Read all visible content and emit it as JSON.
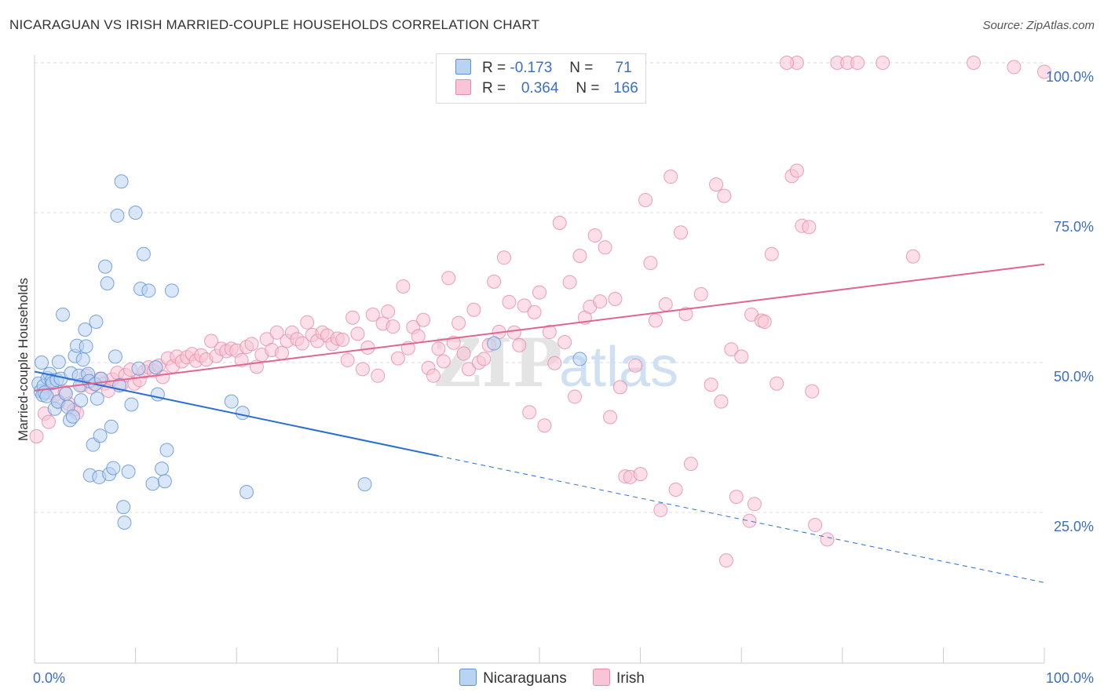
{
  "header": {
    "title": "NICARAGUAN VS IRISH MARRIED-COUPLE HOUSEHOLDS CORRELATION CHART",
    "source": "Source: ZipAtlas.com"
  },
  "legend": {
    "rows": [
      {
        "r_label": "R =",
        "r_value": "-0.173",
        "n_label": "N =",
        "n_value": "71"
      },
      {
        "r_label": "R =",
        "r_value": "0.364",
        "n_label": "N =",
        "n_value": "166"
      }
    ]
  },
  "watermark": {
    "zip": "ZIP",
    "atlas": "atlas"
  },
  "colors": {
    "nicaraguan_fill": "#b9d3f2",
    "nicaraguan_stroke": "#5b8fd6",
    "nicaraguan_line": "#2a6fd0",
    "irish_fill": "#f9c4d5",
    "irish_stroke": "#e68aa8",
    "irish_line": "#e2658e",
    "grid": "#dddddd",
    "tick_label": "#3a6fc4"
  },
  "chart_data": {
    "type": "scatter",
    "title": "NICARAGUAN VS IRISH MARRIED-COUPLE HOUSEHOLDS CORRELATION CHART",
    "xlabel": "",
    "ylabel": "Married-couple Households",
    "xlim": [
      0,
      100
    ],
    "ylim": [
      0,
      104
    ],
    "x_tick_labels": [
      "0.0%",
      "100.0%"
    ],
    "y_ticks": [
      25,
      50,
      75,
      100
    ],
    "y_tick_labels": [
      "25.0%",
      "50.0%",
      "75.0%",
      "100.0%"
    ],
    "grid": true,
    "legend_position": "bottom",
    "series": [
      {
        "name": "Nicaraguans",
        "r": -0.173,
        "n": 71,
        "trend": {
          "x0": 0,
          "y0": 48.5,
          "x1": 100,
          "y1": 13.3,
          "solid_until": 40
        },
        "points": [
          [
            0.4,
            46.5
          ],
          [
            0.6,
            45.2
          ],
          [
            0.8,
            44.6
          ],
          [
            0.7,
            50.0
          ],
          [
            0.9,
            46.1
          ],
          [
            1.0,
            45.0
          ],
          [
            1.2,
            44.4
          ],
          [
            1.3,
            47.4
          ],
          [
            1.5,
            48.1
          ],
          [
            1.7,
            47.0
          ],
          [
            1.8,
            46.6
          ],
          [
            2.0,
            42.3
          ],
          [
            2.2,
            47.1
          ],
          [
            2.3,
            43.5
          ],
          [
            2.4,
            50.1
          ],
          [
            2.6,
            47.3
          ],
          [
            2.8,
            58.0
          ],
          [
            3.1,
            44.8
          ],
          [
            3.3,
            42.6
          ],
          [
            3.5,
            40.4
          ],
          [
            3.6,
            48.2
          ],
          [
            3.8,
            41.0
          ],
          [
            4.0,
            51.1
          ],
          [
            4.2,
            52.8
          ],
          [
            4.4,
            47.8
          ],
          [
            4.5,
            46.2
          ],
          [
            4.6,
            43.7
          ],
          [
            4.8,
            50.5
          ],
          [
            5.0,
            55.5
          ],
          [
            5.1,
            52.7
          ],
          [
            5.3,
            48.1
          ],
          [
            5.4,
            46.9
          ],
          [
            5.5,
            31.2
          ],
          [
            5.8,
            36.3
          ],
          [
            6.0,
            46.4
          ],
          [
            6.1,
            56.8
          ],
          [
            6.2,
            44.0
          ],
          [
            6.4,
            30.9
          ],
          [
            6.5,
            37.8
          ],
          [
            6.6,
            47.3
          ],
          [
            7.0,
            66.0
          ],
          [
            7.2,
            63.2
          ],
          [
            7.4,
            31.4
          ],
          [
            7.6,
            39.3
          ],
          [
            7.8,
            32.4
          ],
          [
            8.0,
            51.0
          ],
          [
            8.2,
            74.5
          ],
          [
            8.4,
            46.2
          ],
          [
            8.6,
            80.2
          ],
          [
            8.8,
            25.9
          ],
          [
            8.9,
            23.3
          ],
          [
            9.3,
            31.8
          ],
          [
            9.6,
            43.0
          ],
          [
            10.0,
            75.0
          ],
          [
            10.5,
            62.3
          ],
          [
            10.8,
            68.1
          ],
          [
            11.3,
            62.0
          ],
          [
            11.7,
            29.8
          ],
          [
            12.0,
            49.2
          ],
          [
            12.2,
            44.7
          ],
          [
            12.6,
            32.3
          ],
          [
            12.9,
            30.2
          ],
          [
            13.1,
            35.4
          ],
          [
            13.6,
            62.0
          ],
          [
            19.5,
            43.5
          ],
          [
            20.6,
            41.6
          ],
          [
            21.0,
            28.4
          ],
          [
            32.7,
            29.7
          ],
          [
            54.0,
            50.6
          ],
          [
            45.5,
            53.2
          ],
          [
            10.3,
            49.0
          ]
        ]
      },
      {
        "name": "Irish",
        "r": 0.364,
        "n": 166,
        "trend": {
          "x0": 0,
          "y0": 45.3,
          "x1": 100,
          "y1": 66.4
        },
        "points": [
          [
            0.2,
            37.7
          ],
          [
            1.0,
            41.5
          ],
          [
            1.4,
            40.1
          ],
          [
            2.0,
            44.6
          ],
          [
            2.4,
            43.4
          ],
          [
            3.0,
            45.1
          ],
          [
            3.4,
            43.1
          ],
          [
            3.9,
            42.1
          ],
          [
            4.2,
            41.6
          ],
          [
            4.7,
            46.2
          ],
          [
            5.1,
            47.8
          ],
          [
            5.6,
            45.9
          ],
          [
            6.0,
            46.4
          ],
          [
            6.5,
            47.3
          ],
          [
            6.9,
            46.5
          ],
          [
            7.3,
            45.3
          ],
          [
            7.7,
            47.2
          ],
          [
            8.2,
            48.3
          ],
          [
            8.6,
            46.3
          ],
          [
            9.0,
            47.9
          ],
          [
            9.5,
            48.8
          ],
          [
            9.9,
            46.5
          ],
          [
            10.4,
            47.1
          ],
          [
            10.9,
            48.5
          ],
          [
            11.3,
            49.2
          ],
          [
            11.8,
            48.6
          ],
          [
            12.3,
            49.5
          ],
          [
            12.7,
            47.6
          ],
          [
            13.2,
            50.7
          ],
          [
            13.7,
            49.4
          ],
          [
            14.1,
            51.0
          ],
          [
            14.6,
            50.2
          ],
          [
            15.1,
            50.9
          ],
          [
            15.6,
            51.4
          ],
          [
            16.0,
            50.3
          ],
          [
            16.5,
            51.2
          ],
          [
            17.0,
            50.5
          ],
          [
            17.5,
            53.6
          ],
          [
            18.0,
            51.1
          ],
          [
            18.5,
            52.3
          ],
          [
            19.0,
            51.9
          ],
          [
            19.5,
            52.3
          ],
          [
            20.0,
            52.0
          ],
          [
            20.5,
            50.4
          ],
          [
            21.0,
            52.6
          ],
          [
            21.5,
            53.1
          ],
          [
            22.0,
            49.3
          ],
          [
            22.5,
            51.3
          ],
          [
            23.0,
            53.9
          ],
          [
            23.5,
            52.1
          ],
          [
            24.0,
            55.0
          ],
          [
            24.5,
            51.6
          ],
          [
            25.0,
            53.6
          ],
          [
            25.5,
            55.0
          ],
          [
            26.0,
            53.9
          ],
          [
            26.5,
            53.2
          ],
          [
            27.0,
            56.7
          ],
          [
            27.5,
            54.6
          ],
          [
            28.0,
            53.6
          ],
          [
            28.5,
            55.0
          ],
          [
            29.0,
            54.5
          ],
          [
            29.5,
            53.1
          ],
          [
            30.0,
            54.0
          ],
          [
            30.5,
            53.8
          ],
          [
            31.0,
            50.4
          ],
          [
            31.5,
            57.5
          ],
          [
            32.0,
            54.8
          ],
          [
            32.5,
            48.9
          ],
          [
            33.0,
            52.5
          ],
          [
            33.5,
            58.0
          ],
          [
            34.0,
            47.8
          ],
          [
            34.5,
            56.5
          ],
          [
            35.0,
            58.5
          ],
          [
            35.5,
            56.0
          ],
          [
            36.0,
            50.7
          ],
          [
            36.5,
            62.7
          ],
          [
            37.0,
            52.4
          ],
          [
            37.5,
            55.9
          ],
          [
            38.0,
            54.4
          ],
          [
            38.5,
            57.1
          ],
          [
            39.0,
            49.1
          ],
          [
            39.5,
            47.8
          ],
          [
            40.0,
            52.3
          ],
          [
            40.5,
            50.2
          ],
          [
            41.0,
            64.1
          ],
          [
            41.5,
            53.3
          ],
          [
            42.0,
            56.6
          ],
          [
            42.5,
            51.5
          ],
          [
            43.0,
            48.9
          ],
          [
            43.5,
            58.8
          ],
          [
            44.0,
            50.0
          ],
          [
            44.5,
            50.6
          ],
          [
            45.0,
            52.9
          ],
          [
            45.5,
            63.5
          ],
          [
            46.0,
            55.1
          ],
          [
            46.5,
            67.5
          ],
          [
            47.0,
            60.1
          ],
          [
            47.5,
            55.0
          ],
          [
            48.0,
            52.9
          ],
          [
            48.5,
            59.5
          ],
          [
            49.0,
            41.7
          ],
          [
            49.5,
            58.4
          ],
          [
            50.0,
            61.7
          ],
          [
            50.5,
            39.5
          ],
          [
            51.0,
            55.1
          ],
          [
            51.5,
            49.9
          ],
          [
            52.0,
            73.3
          ],
          [
            52.5,
            53.4
          ],
          [
            53.0,
            63.4
          ],
          [
            53.5,
            44.3
          ],
          [
            54.0,
            67.8
          ],
          [
            54.5,
            57.5
          ],
          [
            55.0,
            59.3
          ],
          [
            55.5,
            71.2
          ],
          [
            56.0,
            60.2
          ],
          [
            56.5,
            69.2
          ],
          [
            57.0,
            40.9
          ],
          [
            57.5,
            60.6
          ],
          [
            58.0,
            45.9
          ],
          [
            58.5,
            31.0
          ],
          [
            59.0,
            30.9
          ],
          [
            59.5,
            49.5
          ],
          [
            60.0,
            31.4
          ],
          [
            60.5,
            77.1
          ],
          [
            61.0,
            66.6
          ],
          [
            61.5,
            57.0
          ],
          [
            62.0,
            25.4
          ],
          [
            62.5,
            59.7
          ],
          [
            63.0,
            81.0
          ],
          [
            63.5,
            28.8
          ],
          [
            64.0,
            71.7
          ],
          [
            64.5,
            58.1
          ],
          [
            65.0,
            33.1
          ],
          [
            66.0,
            61.4
          ],
          [
            67.0,
            46.3
          ],
          [
            67.5,
            79.7
          ],
          [
            68.0,
            43.5
          ],
          [
            68.3,
            77.8
          ],
          [
            68.5,
            17.0
          ],
          [
            69.0,
            52.2
          ],
          [
            69.5,
            27.6
          ],
          [
            70.0,
            51.0
          ],
          [
            70.8,
            23.6
          ],
          [
            71.0,
            58.0
          ],
          [
            71.3,
            26.4
          ],
          [
            72.0,
            57.0
          ],
          [
            72.3,
            56.8
          ],
          [
            73.0,
            68.1
          ],
          [
            73.5,
            46.5
          ],
          [
            75.0,
            81.1
          ],
          [
            75.5,
            82.0
          ],
          [
            76.0,
            72.8
          ],
          [
            76.7,
            72.6
          ],
          [
            77.0,
            45.2
          ],
          [
            77.3,
            22.9
          ],
          [
            78.5,
            20.5
          ],
          [
            75.5,
            100
          ],
          [
            79.5,
            100
          ],
          [
            80.5,
            100
          ],
          [
            81.5,
            100
          ],
          [
            84.0,
            100
          ],
          [
            87.0,
            67.7
          ],
          [
            93.0,
            100
          ],
          [
            97.0,
            99.3
          ],
          [
            100,
            98.5
          ],
          [
            74.5,
            100
          ]
        ]
      }
    ]
  }
}
